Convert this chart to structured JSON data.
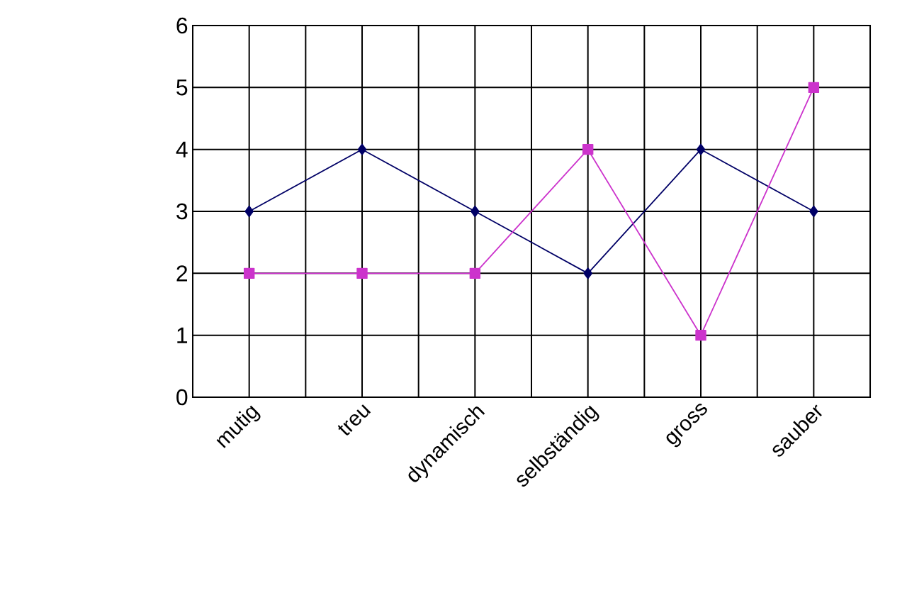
{
  "chart_data": {
    "type": "line",
    "categories": [
      "mutig",
      "treu",
      "dynamisch",
      "selbständig",
      "gross",
      "sauber"
    ],
    "series": [
      {
        "color": "#000066",
        "marker": "diamond",
        "values": [
          3,
          4,
          3,
          2,
          4,
          3
        ]
      },
      {
        "color": "#cc33cc",
        "marker": "square",
        "values": [
          2,
          2,
          2,
          4,
          1,
          5
        ]
      }
    ],
    "ylim": [
      0,
      6
    ],
    "yticks": [
      0,
      1,
      2,
      3,
      4,
      5,
      6
    ],
    "grid": true
  }
}
